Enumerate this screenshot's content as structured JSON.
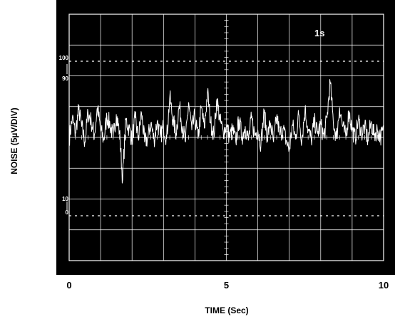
{
  "chart_data": {
    "type": "line",
    "title": "",
    "xlabel": "TIME (Sec)",
    "ylabel": "NOISE (5µV/DIV)",
    "xlim": [
      0,
      10
    ],
    "ylim": [
      0,
      10
    ],
    "x_tick_labels": [
      {
        "x": 0,
        "label": "0"
      },
      {
        "x": 5,
        "label": "5"
      },
      {
        "x": 10,
        "label": "10"
      }
    ],
    "grid": true,
    "timebase_annotation": "1s",
    "markers": [
      {
        "y": 9,
        "label": "100",
        "style": "dashed"
      },
      {
        "y": 8,
        "label": "90",
        "style": "tick"
      },
      {
        "y": 1,
        "label": "10",
        "style": "tick"
      },
      {
        "y": 0,
        "label": "0",
        "style": "dashed"
      }
    ],
    "series": [
      {
        "color": "#ffffff",
        "x": [
          0.0,
          0.1,
          0.2,
          0.3,
          0.4,
          0.5,
          0.6,
          0.7,
          0.8,
          0.9,
          1.0,
          1.1,
          1.2,
          1.3,
          1.4,
          1.5,
          1.6,
          1.7,
          1.8,
          1.9,
          2.0,
          2.1,
          2.2,
          2.3,
          2.4,
          2.5,
          2.6,
          2.7,
          2.8,
          2.9,
          3.0,
          3.1,
          3.2,
          3.3,
          3.4,
          3.5,
          3.6,
          3.7,
          3.8,
          3.9,
          4.0,
          4.1,
          4.2,
          4.3,
          4.4,
          4.5,
          4.6,
          4.7,
          4.8,
          4.9,
          5.0,
          5.1,
          5.2,
          5.3,
          5.4,
          5.5,
          5.6,
          5.7,
          5.8,
          5.9,
          6.0,
          6.1,
          6.2,
          6.3,
          6.4,
          6.5,
          6.6,
          6.7,
          6.8,
          6.9,
          7.0,
          7.1,
          7.2,
          7.3,
          7.4,
          7.5,
          7.6,
          7.7,
          7.8,
          7.9,
          8.0,
          8.1,
          8.2,
          8.3,
          8.4,
          8.5,
          8.6,
          8.7,
          8.8,
          8.9,
          9.0,
          9.1,
          9.2,
          9.3,
          9.4,
          9.5,
          9.6,
          9.7,
          9.8,
          9.9,
          10.0
        ],
        "values": [
          4.5,
          5.7,
          4.8,
          6.2,
          5.2,
          4.3,
          6.0,
          5.5,
          4.7,
          6.3,
          5.0,
          4.4,
          5.8,
          5.3,
          4.6,
          5.9,
          4.9,
          2.1,
          5.6,
          5.1,
          4.4,
          5.7,
          4.5,
          6.0,
          4.3,
          4.5,
          5.4,
          4.4,
          5.5,
          4.6,
          5.2,
          4.5,
          6.9,
          5.6,
          4.8,
          6.4,
          5.2,
          4.3,
          6.6,
          5.0,
          5.8,
          4.5,
          6.3,
          5.1,
          7.2,
          5.4,
          4.7,
          6.8,
          5.5,
          4.9,
          5.2,
          4.6,
          5.0,
          4.3,
          5.6,
          4.6,
          5.2,
          4.4,
          5.7,
          4.7,
          5.0,
          4.2,
          6.0,
          4.6,
          5.4,
          4.3,
          5.8,
          4.7,
          5.1,
          4.4,
          3.8,
          5.3,
          4.5,
          5.9,
          4.4,
          6.2,
          5.0,
          4.4,
          5.5,
          4.8,
          5.3,
          4.6,
          5.7,
          7.8,
          5.5,
          4.5,
          6.3,
          5.2,
          4.6,
          6.1,
          5.0,
          4.5,
          5.6,
          4.8,
          5.2,
          4.4,
          5.4,
          4.7,
          5.0,
          4.6,
          4.9
        ]
      }
    ]
  }
}
